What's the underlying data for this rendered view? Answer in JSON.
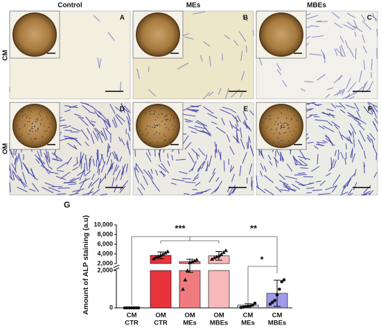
{
  "figure": {
    "column_headers": [
      "Control",
      "MEs",
      "MBEs"
    ],
    "row_labels": [
      "CM",
      "OM"
    ],
    "panel_letters": [
      "A",
      "B",
      "C",
      "D",
      "E",
      "F"
    ],
    "chart_letter": "G"
  },
  "chart_data": {
    "type": "bar",
    "y_label": "Amount of ALP staining (a.u)",
    "categories": [
      [
        "CM",
        "CTR"
      ],
      [
        "OM",
        "CTR"
      ],
      [
        "OM",
        "MEs"
      ],
      [
        "OM",
        "MBEs"
      ],
      [
        "CM",
        "MEs"
      ],
      [
        "CM",
        "MBEs"
      ]
    ],
    "values": [
      0,
      3700,
      2400,
      3600,
      150,
      780
    ],
    "errors": [
      0,
      700,
      500,
      900,
      80,
      700
    ],
    "points": [
      [
        0,
        0,
        0,
        0,
        0,
        0,
        0
      ],
      [
        3000,
        3300,
        3500,
        3700,
        3900,
        4200,
        4500
      ],
      [
        1000,
        1500,
        2000,
        2200,
        2400,
        2600,
        2800
      ],
      [
        2900,
        3200,
        3400,
        3600,
        3900,
        4300,
        4700
      ],
      [
        20,
        40,
        60,
        80,
        100,
        150,
        250
      ],
      [
        200,
        300,
        400,
        700,
        1000,
        1400,
        1500
      ]
    ],
    "markers": [
      "circle",
      "triangle",
      "triangle",
      "triangle",
      "circle",
      "circle"
    ],
    "colors": [
      "#ffffff",
      "#e8333d",
      "#f07b7e",
      "#f7b9ba",
      "#c9c8f0",
      "#9e9be8"
    ],
    "y_segments": [
      {
        "ylim": [
          0,
          2000
        ],
        "yticks": [
          0,
          {
            "value": 2000,
            "label": "2,000"
          }
        ]
      },
      {
        "ylim": [
          2000,
          10000
        ],
        "yticks": [
          {
            "value": 2000,
            "label": "2,000"
          },
          {
            "value": 4000,
            "label": "4,000"
          },
          {
            "value": 6000,
            "label": "6,000"
          },
          {
            "value": 8000,
            "label": "8,000"
          },
          {
            "value": 10000,
            "label": "10,000"
          }
        ]
      }
    ],
    "annotations": [
      "***",
      "**",
      "*"
    ]
  }
}
